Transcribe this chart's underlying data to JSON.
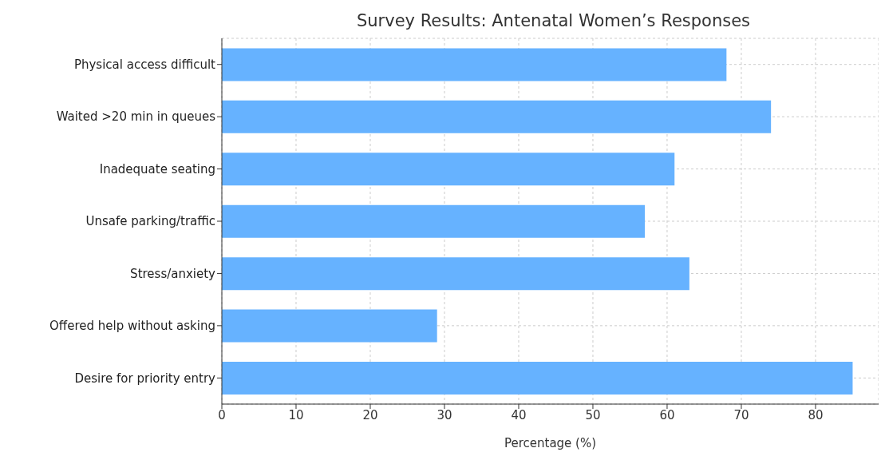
{
  "chart_data": {
    "type": "bar",
    "orientation": "horizontal",
    "title": "Survey Results: Antenatal Women’s Responses",
    "xlabel": "Percentage (%)",
    "categories": [
      "Physical access difficult",
      "Waited >20 min in queues",
      "Inadequate seating",
      "Unsafe parking/traffic",
      "Stress/anxiety",
      "Offered help without asking",
      "Desire for priority entry"
    ],
    "values": [
      68,
      74,
      61,
      57,
      63,
      29,
      85
    ],
    "color": "#66b2ff",
    "xlim": [
      0,
      88.5
    ],
    "xticks": [
      0,
      10,
      20,
      30,
      40,
      50,
      60,
      70,
      80
    ],
    "grid": true
  }
}
